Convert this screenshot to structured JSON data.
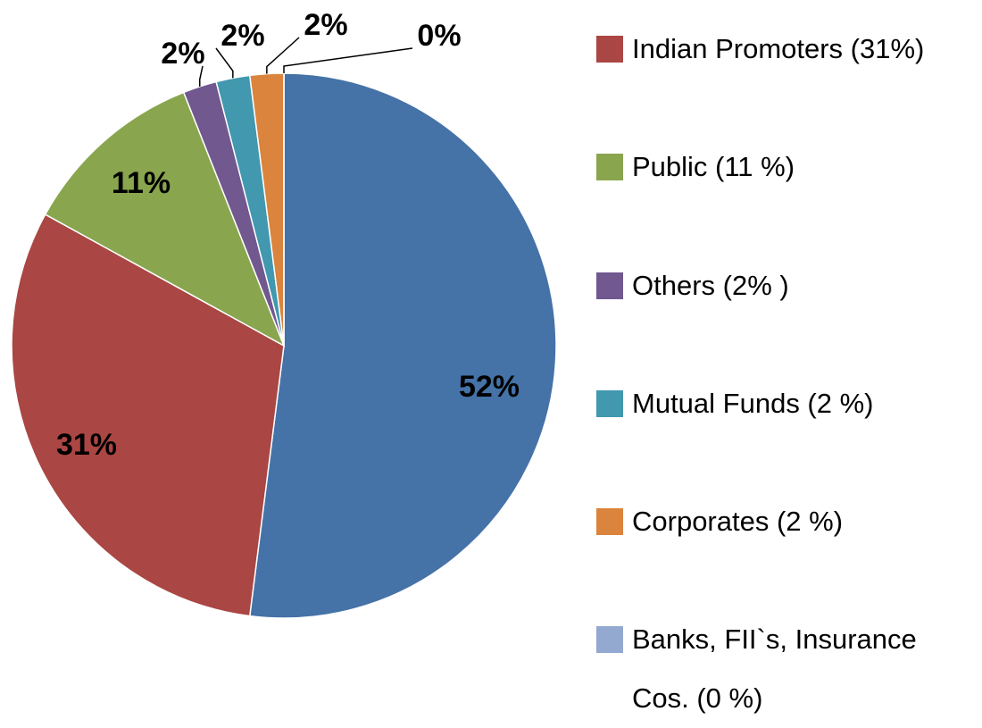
{
  "chart_data": {
    "type": "pie",
    "categories": [
      null,
      "Indian Promoters (31%)",
      "Public (11 %)",
      "Others (2% )",
      "Mutual Funds (2 %)",
      "Corporates (2 %)",
      "Banks, FII`s, Insurance Cos. (0 %)"
    ],
    "values": [
      52,
      31,
      11,
      2,
      2,
      2,
      0
    ],
    "value_labels": [
      "52%",
      "31%",
      "11%",
      "2%",
      "2%",
      "2%",
      "0%"
    ],
    "colors": [
      "#4572a7",
      "#aa4643",
      "#89a54e",
      "#71588f",
      "#4198af",
      "#db843d",
      "#93a9cf"
    ],
    "legend": "right"
  }
}
